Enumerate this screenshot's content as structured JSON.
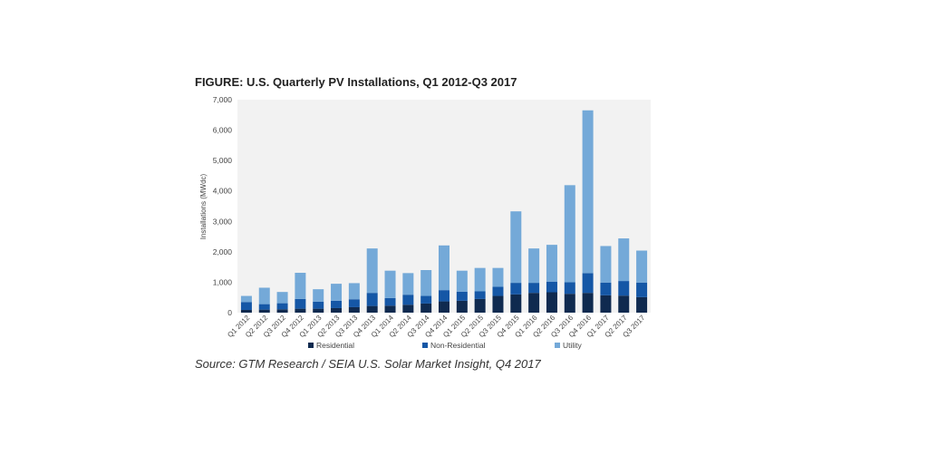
{
  "chart_data": {
    "type": "bar",
    "stacked": true,
    "title": "FIGURE: U.S. Quarterly PV Installations, Q1 2012-Q3 2017",
    "ylabel": "Installations (MWdc)",
    "xlabel": "",
    "ylim": [
      0,
      7000
    ],
    "yticks": [
      "0",
      "1,000",
      "2,000",
      "3,000",
      "4,000",
      "5,000",
      "6,000",
      "7,000"
    ],
    "categories": [
      "Q1 2012",
      "Q2 2012",
      "Q3 2012",
      "Q4 2012",
      "Q1 2013",
      "Q2 2013",
      "Q3 2013",
      "Q4 2013",
      "Q1 2014",
      "Q2 2014",
      "Q3 2014",
      "Q4 2014",
      "Q1 2015",
      "Q2 2015",
      "Q3 2015",
      "Q4 2015",
      "Q1 2016",
      "Q2 2016",
      "Q3 2016",
      "Q4 2016",
      "Q1 2017",
      "Q2 2017",
      "Q3 2017"
    ],
    "series": [
      {
        "name": "Residential",
        "color": "#0f2a4f",
        "values": [
          90,
          100,
          110,
          130,
          130,
          150,
          180,
          220,
          230,
          260,
          300,
          370,
          390,
          450,
          550,
          600,
          650,
          670,
          620,
          650,
          570,
          560,
          510
        ]
      },
      {
        "name": "Non-Residential",
        "color": "#1557a6",
        "values": [
          260,
          180,
          200,
          320,
          230,
          240,
          260,
          430,
          250,
          330,
          250,
          370,
          300,
          250,
          300,
          380,
          330,
          350,
          380,
          650,
          420,
          480,
          480
        ]
      },
      {
        "name": "Utility",
        "color": "#74a9d8",
        "values": [
          200,
          540,
          370,
          860,
          410,
          560,
          530,
          1460,
          900,
          710,
          850,
          1470,
          690,
          770,
          620,
          2350,
          1130,
          1210,
          3190,
          5350,
          1200,
          1400,
          1050
        ]
      }
    ],
    "grid": false,
    "legend_position": "bottom",
    "plot_background": "#f2f2f2",
    "source": "Source: GTM Research / SEIA U.S. Solar Market Insight, Q4 2017"
  }
}
